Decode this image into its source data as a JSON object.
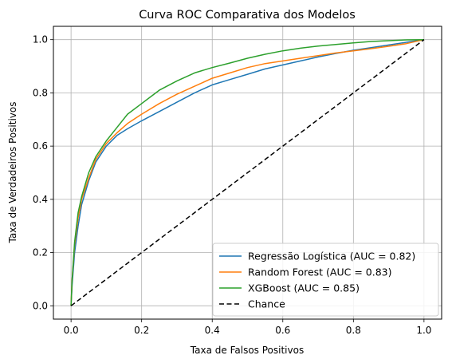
{
  "chart_data": {
    "type": "line",
    "title": "Curva ROC Comparativa dos Modelos",
    "xlabel": "Taxa de Falsos Positivos",
    "ylabel": "Taxa de Verdadeiros Positivos",
    "xlim": [
      -0.05,
      1.05
    ],
    "ylim": [
      -0.05,
      1.05
    ],
    "xticks": [
      0.0,
      0.2,
      0.4,
      0.6,
      0.8,
      1.0
    ],
    "yticks": [
      0.0,
      0.2,
      0.4,
      0.6,
      0.8,
      1.0
    ],
    "xtick_labels": [
      "0.0",
      "0.2",
      "0.4",
      "0.6",
      "0.8",
      "1.0"
    ],
    "ytick_labels": [
      "0.0",
      "0.2",
      "0.4",
      "0.6",
      "0.8",
      "1.0"
    ],
    "grid": true,
    "legend_position": "lower-right",
    "series": [
      {
        "name": "Regressão Logística (AUC = 0.82)",
        "color": "#1f77b4",
        "style": "solid",
        "x": [
          0.0,
          0.003,
          0.01,
          0.02,
          0.03,
          0.05,
          0.07,
          0.1,
          0.13,
          0.16,
          0.2,
          0.25,
          0.3,
          0.35,
          0.4,
          0.45,
          0.5,
          0.55,
          0.6,
          0.65,
          0.7,
          0.75,
          0.8,
          0.85,
          0.9,
          0.95,
          1.0
        ],
        "y": [
          0.0,
          0.08,
          0.2,
          0.3,
          0.38,
          0.47,
          0.54,
          0.6,
          0.64,
          0.665,
          0.695,
          0.73,
          0.765,
          0.8,
          0.83,
          0.85,
          0.87,
          0.89,
          0.905,
          0.92,
          0.935,
          0.948,
          0.96,
          0.97,
          0.98,
          0.99,
          1.0
        ]
      },
      {
        "name": "Random Forest (AUC = 0.83)",
        "color": "#ff7f0e",
        "style": "solid",
        "x": [
          0.0,
          0.003,
          0.01,
          0.02,
          0.03,
          0.05,
          0.07,
          0.1,
          0.13,
          0.16,
          0.2,
          0.25,
          0.3,
          0.35,
          0.4,
          0.45,
          0.5,
          0.55,
          0.6,
          0.65,
          0.7,
          0.75,
          0.8,
          0.85,
          0.9,
          0.95,
          1.0
        ],
        "y": [
          0.0,
          0.1,
          0.23,
          0.33,
          0.4,
          0.48,
          0.55,
          0.61,
          0.65,
          0.685,
          0.72,
          0.76,
          0.795,
          0.825,
          0.855,
          0.875,
          0.895,
          0.91,
          0.92,
          0.93,
          0.94,
          0.95,
          0.958,
          0.966,
          0.975,
          0.985,
          1.0
        ]
      },
      {
        "name": "XGBoost (AUC = 0.85)",
        "color": "#2ca02c",
        "style": "solid",
        "x": [
          0.0,
          0.003,
          0.01,
          0.02,
          0.03,
          0.05,
          0.07,
          0.1,
          0.13,
          0.16,
          0.2,
          0.25,
          0.3,
          0.35,
          0.4,
          0.45,
          0.5,
          0.55,
          0.6,
          0.65,
          0.7,
          0.75,
          0.8,
          0.85,
          0.9,
          0.95,
          1.0
        ],
        "y": [
          0.0,
          0.1,
          0.24,
          0.35,
          0.41,
          0.5,
          0.56,
          0.62,
          0.67,
          0.72,
          0.76,
          0.81,
          0.845,
          0.875,
          0.895,
          0.912,
          0.93,
          0.945,
          0.958,
          0.968,
          0.976,
          0.982,
          0.988,
          0.993,
          0.996,
          0.999,
          1.0
        ]
      },
      {
        "name": "Chance",
        "color": "#000000",
        "style": "dashed",
        "x": [
          0.0,
          1.0
        ],
        "y": [
          0.0,
          1.0
        ]
      }
    ]
  }
}
